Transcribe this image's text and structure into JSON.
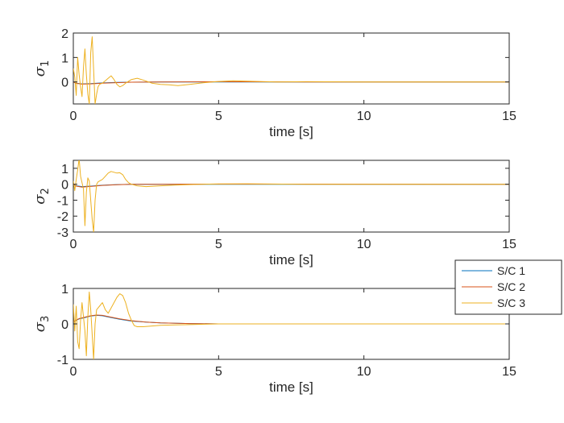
{
  "chart_data": [
    {
      "type": "line",
      "ylabel": "σ",
      "ylabel_sub": "1",
      "xlabel": "time [s]",
      "xlim": [
        0,
        15
      ],
      "ylim": [
        -0.9,
        2
      ],
      "xticks": [
        0,
        5,
        10,
        15
      ],
      "yticks": [
        0,
        1,
        2
      ],
      "grid": false,
      "series": [
        {
          "name": "S/C 1",
          "color": "#0072BD",
          "x": [
            0,
            0.1,
            0.3,
            0.6,
            1.0,
            1.5,
            2.0,
            3,
            5,
            8,
            15
          ],
          "y": [
            0,
            -0.05,
            -0.08,
            -0.07,
            -0.04,
            -0.02,
            -0.01,
            0,
            0,
            0,
            0
          ]
        },
        {
          "name": "S/C 2",
          "color": "#D95319",
          "x": [
            0,
            0.1,
            0.3,
            0.6,
            1.0,
            1.5,
            2.0,
            3,
            5,
            8,
            15
          ],
          "y": [
            0,
            -0.06,
            -0.09,
            -0.08,
            -0.05,
            -0.03,
            -0.01,
            0,
            0.01,
            0,
            0
          ]
        },
        {
          "name": "S/C 3",
          "color": "#EDB120",
          "x": [
            0,
            0.05,
            0.1,
            0.15,
            0.2,
            0.25,
            0.3,
            0.35,
            0.4,
            0.45,
            0.5,
            0.55,
            0.6,
            0.65,
            0.7,
            0.75,
            0.8,
            0.85,
            0.9,
            1.0,
            1.1,
            1.2,
            1.3,
            1.4,
            1.5,
            1.6,
            1.7,
            1.8,
            2.0,
            2.2,
            2.4,
            2.7,
            3.0,
            3.3,
            3.6,
            4.0,
            4.5,
            5.0,
            5.5,
            6.0,
            7.0,
            8.0,
            10.0,
            15.0
          ],
          "y": [
            0.55,
            0.2,
            -0.55,
            1.0,
            0.3,
            -0.2,
            -0.6,
            0.6,
            1.35,
            0.3,
            -0.5,
            -0.9,
            1.2,
            1.85,
            0.5,
            -0.9,
            -0.5,
            -0.2,
            -0.1,
            -0.05,
            0.05,
            0.15,
            0.25,
            0.1,
            -0.1,
            -0.2,
            -0.15,
            -0.05,
            0.1,
            0.15,
            0.08,
            -0.05,
            -0.1,
            -0.12,
            -0.15,
            -0.1,
            -0.03,
            0.02,
            0.05,
            0.03,
            0.0,
            0.01,
            0.0,
            0.0
          ]
        }
      ]
    },
    {
      "type": "line",
      "ylabel": "σ",
      "ylabel_sub": "2",
      "xlabel": "time [s]",
      "xlim": [
        0,
        15
      ],
      "ylim": [
        -3,
        1.5
      ],
      "xticks": [
        0,
        5,
        10,
        15
      ],
      "yticks": [
        -3,
        -2,
        -1,
        0,
        1
      ],
      "grid": false,
      "series": [
        {
          "name": "S/C 1",
          "color": "#0072BD",
          "x": [
            0,
            0.1,
            0.3,
            0.6,
            1.0,
            1.5,
            2.0,
            3,
            5,
            15
          ],
          "y": [
            0,
            -0.1,
            -0.15,
            -0.12,
            -0.06,
            -0.02,
            0,
            0,
            0,
            0
          ]
        },
        {
          "name": "S/C 2",
          "color": "#D95319",
          "x": [
            0,
            0.1,
            0.3,
            0.6,
            1.0,
            1.5,
            2.0,
            3,
            5,
            15
          ],
          "y": [
            0,
            -0.12,
            -0.18,
            -0.14,
            -0.07,
            -0.03,
            0,
            0,
            0.01,
            0
          ]
        },
        {
          "name": "S/C 3",
          "color": "#EDB120",
          "x": [
            0,
            0.05,
            0.1,
            0.15,
            0.2,
            0.25,
            0.3,
            0.35,
            0.4,
            0.45,
            0.5,
            0.55,
            0.6,
            0.65,
            0.7,
            0.75,
            0.8,
            0.85,
            0.9,
            1.0,
            1.1,
            1.2,
            1.3,
            1.4,
            1.5,
            1.6,
            1.7,
            1.8,
            1.9,
            2.0,
            2.2,
            2.5,
            3.0,
            3.5,
            4.0,
            5.0,
            6.0,
            8.0,
            15.0
          ],
          "y": [
            0.2,
            -0.4,
            0.3,
            0.9,
            1.6,
            0.5,
            0.1,
            -0.3,
            -2.6,
            -0.5,
            0.4,
            0.2,
            -1.0,
            -2.2,
            -3.0,
            -1.0,
            0.0,
            0.15,
            0.2,
            0.3,
            0.5,
            0.7,
            0.8,
            0.75,
            0.7,
            0.72,
            0.6,
            0.3,
            0.1,
            0.0,
            -0.1,
            -0.15,
            -0.1,
            -0.05,
            -0.02,
            0.02,
            0.03,
            0.0,
            0.0
          ]
        }
      ]
    },
    {
      "type": "line",
      "ylabel": "σ",
      "ylabel_sub": "3",
      "xlabel": "time [s]",
      "xlim": [
        0,
        15
      ],
      "ylim": [
        -1,
        1
      ],
      "xticks": [
        0,
        5,
        10,
        15
      ],
      "yticks": [
        -1,
        0,
        1
      ],
      "grid": false,
      "legend": {
        "placement": "top-right",
        "entries": [
          "S/C 1",
          "S/C 2",
          "S/C 3"
        ]
      },
      "series": [
        {
          "name": "S/C 1",
          "color": "#0072BD",
          "x": [
            0,
            0.1,
            0.2,
            0.4,
            0.6,
            0.8,
            1.0,
            1.3,
            1.6,
            2.0,
            2.5,
            3.0,
            4.0,
            5.0,
            7.0,
            15.0
          ],
          "y": [
            0.05,
            0.1,
            0.14,
            0.18,
            0.22,
            0.24,
            0.23,
            0.18,
            0.13,
            0.08,
            0.05,
            0.03,
            0.01,
            0.0,
            0.0,
            0.0
          ]
        },
        {
          "name": "S/C 2",
          "color": "#D95319",
          "x": [
            0,
            0.1,
            0.2,
            0.4,
            0.6,
            0.8,
            1.0,
            1.3,
            1.6,
            2.0,
            2.5,
            3.0,
            4.0,
            5.0,
            7.0,
            15.0
          ],
          "y": [
            0.06,
            0.11,
            0.15,
            0.19,
            0.23,
            0.25,
            0.24,
            0.19,
            0.14,
            0.09,
            0.05,
            0.03,
            0.01,
            0.0,
            0.0,
            0.0
          ]
        },
        {
          "name": "S/C 3",
          "color": "#EDB120",
          "x": [
            0,
            0.05,
            0.1,
            0.15,
            0.2,
            0.25,
            0.3,
            0.35,
            0.4,
            0.45,
            0.5,
            0.55,
            0.6,
            0.65,
            0.7,
            0.75,
            0.8,
            0.9,
            1.0,
            1.1,
            1.2,
            1.3,
            1.4,
            1.5,
            1.6,
            1.7,
            1.8,
            1.9,
            2.0,
            2.1,
            2.2,
            2.4,
            2.7,
            3.0,
            3.5,
            4.0,
            5.0,
            6.0,
            8.0,
            15.0
          ],
          "y": [
            0.55,
            -0.2,
            0.5,
            -0.5,
            -0.7,
            0.1,
            0.6,
            0.2,
            -0.2,
            -0.9,
            0.2,
            0.9,
            0.4,
            -0.3,
            -1.0,
            0.0,
            0.4,
            0.5,
            0.6,
            0.4,
            0.3,
            0.45,
            0.6,
            0.75,
            0.85,
            0.8,
            0.6,
            0.3,
            0.1,
            -0.05,
            -0.08,
            -0.08,
            -0.06,
            -0.04,
            -0.03,
            -0.02,
            0.0,
            0.0,
            0.0,
            0.0
          ]
        }
      ]
    }
  ]
}
